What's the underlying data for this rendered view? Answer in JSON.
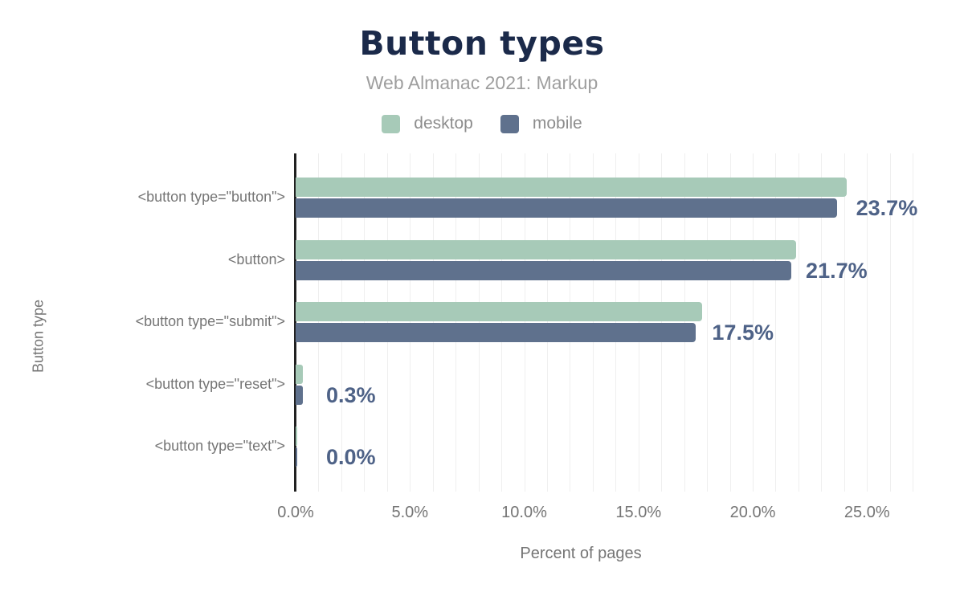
{
  "title": "Button types",
  "subtitle": "Web Almanac 2021: Markup",
  "legend": {
    "items": [
      {
        "label": "desktop",
        "color": "#a7cab8"
      },
      {
        "label": "mobile",
        "color": "#5f718d"
      }
    ]
  },
  "chart_data": {
    "type": "bar",
    "orientation": "horizontal",
    "title": "Button types",
    "subtitle": "Web Almanac 2021: Markup",
    "xlabel": "Percent of pages",
    "ylabel": "Button type",
    "categories": [
      "<button type=\"button\">",
      "<button>",
      "<button type=\"submit\">",
      "<button type=\"reset\">",
      "<button type=\"text\">"
    ],
    "series": [
      {
        "name": "desktop",
        "color": "#a7cab8",
        "values": [
          24.1,
          21.9,
          17.8,
          0.3,
          0.0
        ]
      },
      {
        "name": "mobile",
        "color": "#5f718d",
        "values": [
          23.7,
          21.7,
          17.5,
          0.3,
          0.0
        ]
      }
    ],
    "value_labels": [
      "23.7%",
      "21.7%",
      "17.5%",
      "0.3%",
      "0.0%"
    ],
    "x_ticks": [
      "0.0%",
      "5.0%",
      "10.0%",
      "15.0%",
      "20.0%",
      "25.0%"
    ],
    "x_tick_values": [
      0,
      5,
      10,
      15,
      20,
      25
    ],
    "xlim": [
      0,
      27
    ],
    "grid": "vertical gridlines every 1%",
    "legend_position": "top center",
    "colors": {
      "title": "#1b2a4a",
      "subtitle": "#9e9e9e",
      "axis_text": "#757575",
      "value_label": "#4e6287",
      "axis_line": "#212121",
      "gridline": "#efefef",
      "background": "#ffffff"
    }
  }
}
